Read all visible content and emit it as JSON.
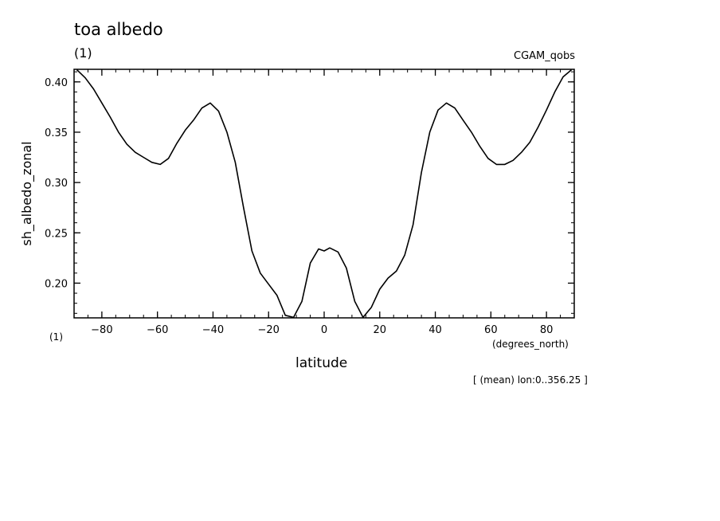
{
  "title": "toa albedo",
  "units_top": "(1)",
  "dataset": "CGAM_qobs",
  "units_bottom": "(1)",
  "x_units": "(degrees_north)",
  "footer": "[ (mean) lon:0..356.25 ]",
  "chart_data": {
    "type": "line",
    "xlabel": "latitude",
    "ylabel": "sh_albedo_zonal",
    "xlim": [
      -90,
      90
    ],
    "ylim": [
      0.1655,
      0.4125
    ],
    "x_ticks": [
      -80,
      -60,
      -40,
      -20,
      0,
      20,
      40,
      60,
      80
    ],
    "x_tick_labels": [
      "−80",
      "−60",
      "−40",
      "−20",
      "0",
      "20",
      "40",
      "60",
      "80"
    ],
    "y_ticks": [
      0.2,
      0.25,
      0.3,
      0.35,
      0.4
    ],
    "y_tick_labels": [
      "0.20",
      "0.25",
      "0.30",
      "0.35",
      "0.40"
    ],
    "series": [
      {
        "color": "#000000",
        "x": [
          -89,
          -86,
          -83,
          -80,
          -77,
          -74,
          -71,
          -68,
          -65,
          -62,
          -59,
          -56,
          -53,
          -50,
          -47,
          -44,
          -41,
          -38,
          -35,
          -32,
          -29,
          -26,
          -23,
          -20,
          -17,
          -14,
          -11,
          -8,
          -5,
          -2,
          0,
          2,
          5,
          8,
          11,
          14,
          17,
          20,
          23,
          26,
          29,
          32,
          35,
          38,
          41,
          44,
          47,
          50,
          53,
          56,
          59,
          62,
          65,
          68,
          71,
          74,
          77,
          80,
          83,
          86,
          89
        ],
        "y": [
          0.412,
          0.404,
          0.393,
          0.379,
          0.365,
          0.35,
          0.338,
          0.33,
          0.325,
          0.32,
          0.318,
          0.324,
          0.339,
          0.352,
          0.362,
          0.374,
          0.379,
          0.371,
          0.35,
          0.32,
          0.275,
          0.232,
          0.21,
          0.199,
          0.188,
          0.168,
          0.166,
          0.182,
          0.22,
          0.234,
          0.232,
          0.235,
          0.231,
          0.215,
          0.182,
          0.166,
          0.176,
          0.194,
          0.205,
          0.212,
          0.228,
          0.258,
          0.31,
          0.35,
          0.372,
          0.379,
          0.374,
          0.362,
          0.35,
          0.336,
          0.324,
          0.318,
          0.318,
          0.322,
          0.33,
          0.34,
          0.355,
          0.372,
          0.39,
          0.405,
          0.412
        ]
      }
    ]
  }
}
